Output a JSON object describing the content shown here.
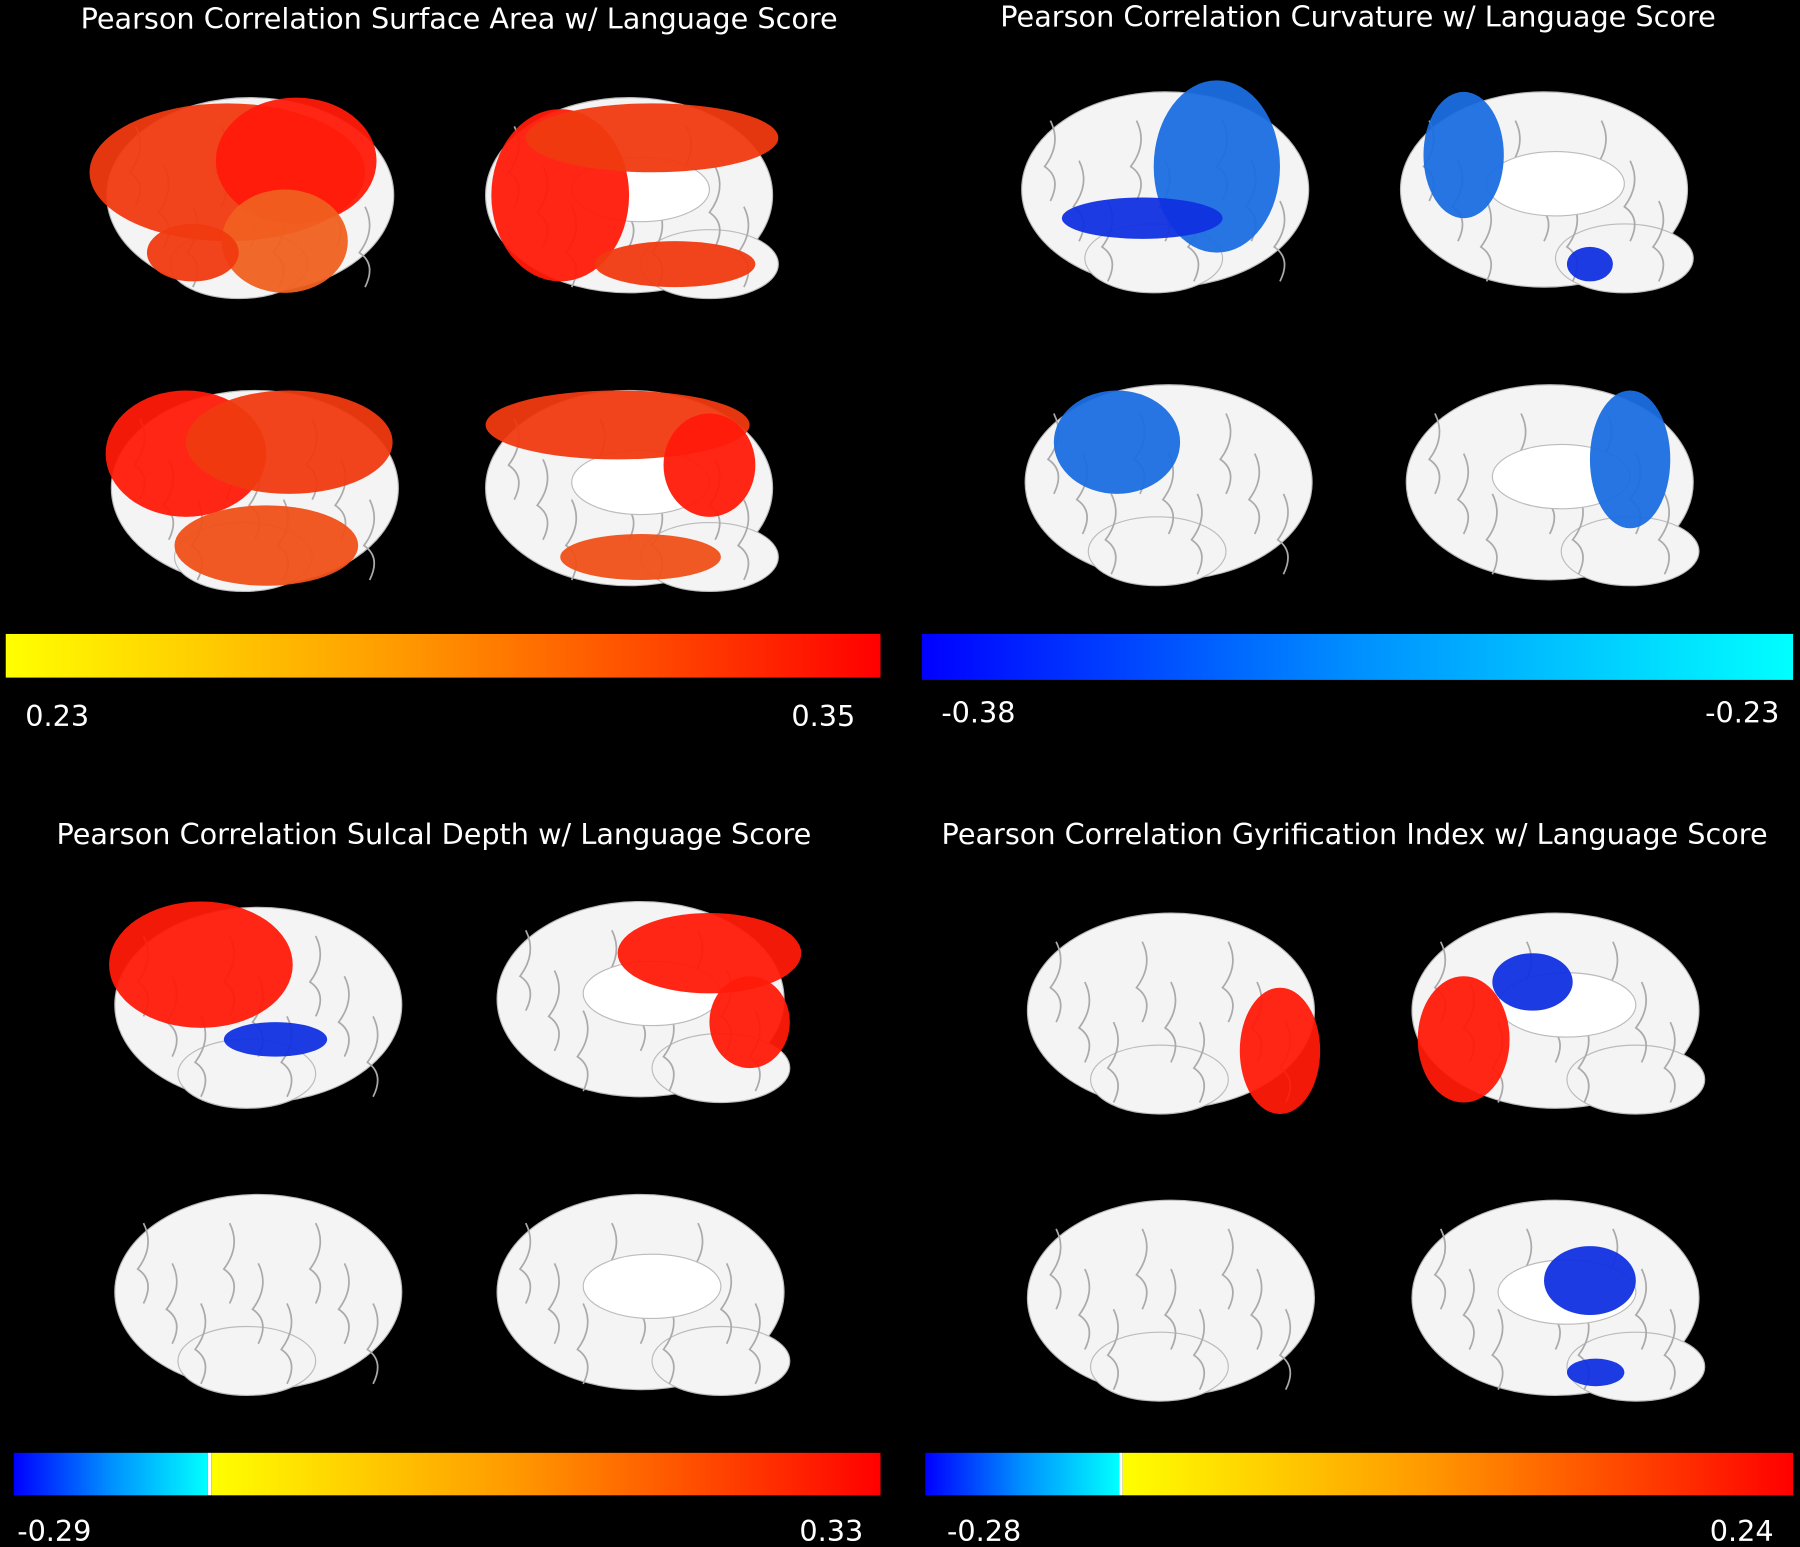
{
  "panels": [
    {
      "title": "Pearson Correlation Surface Area w/ Language Score",
      "min_label": "0.23",
      "max_label": "0.35"
    },
    {
      "title": "Pearson Correlation Curvature w/ Language Score",
      "min_label": "-0.38",
      "max_label": "-0.23"
    },
    {
      "title": "Pearson Correlation Sulcal Depth w/ Language Score",
      "min_label": "-0.29",
      "max_label": "0.33"
    },
    {
      "title": "Pearson Correlation Gyrification Index w/ Language Score",
      "min_label": "-0.28",
      "max_label": "0.24"
    }
  ]
}
